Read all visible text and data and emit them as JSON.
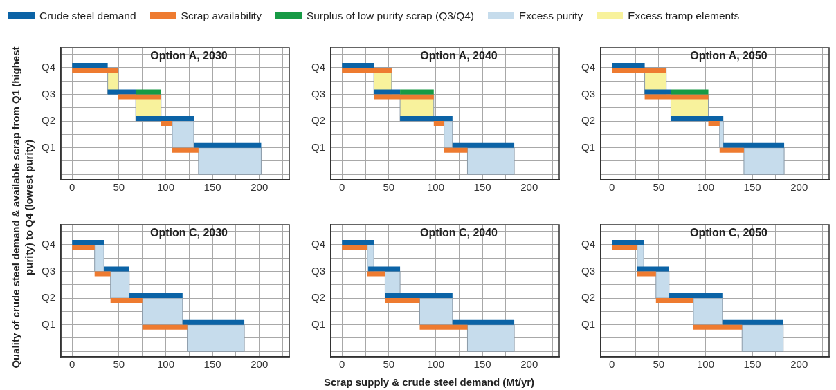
{
  "chart_data": [
    {
      "type": "bar",
      "orientation": "horizontal",
      "title": "Option A, 2030",
      "legend": "top",
      "ylabel": "Quality of crude steel demand & available scrap from Q1 (highest purity) to Q4 (lowest purity)",
      "xlabel": "Scrap supply & crude steel demand (Mt/yr)",
      "grid": true,
      "xlim": [
        -12,
        232
      ],
      "xticks": [
        0,
        {
          "value": 25,
          "label": null
        },
        50,
        {
          "value": 75,
          "label": null
        },
        100,
        {
          "value": 125,
          "label": null
        },
        150,
        {
          "value": 175,
          "label": null
        },
        200,
        {
          "value": 225,
          "label": null
        }
      ],
      "categories": [
        "Q4",
        null,
        "Q3",
        null,
        "Q2",
        null,
        "Q1",
        null
      ],
      "series": [
        {
          "name": "Crude steel demand",
          "color": "#0b63a6",
          "base": [
            0,
            null,
            38,
            null,
            68,
            null,
            130,
            null
          ],
          "values": [
            38,
            null,
            30,
            null,
            62,
            null,
            72,
            null
          ]
        },
        {
          "name": "Scrap availability",
          "color": "#ee7b30",
          "base": [
            0,
            null,
            49,
            null,
            95,
            null,
            107,
            null
          ],
          "values": [
            49,
            null,
            46,
            null,
            12,
            null,
            28,
            null
          ]
        },
        {
          "name": "Surplus of low purity scrap (Q3/Q4)",
          "color": "#179a45",
          "base": [
            null,
            null,
            68,
            null,
            null,
            null,
            null,
            null
          ],
          "values": [
            null,
            null,
            27,
            null,
            null,
            null,
            null,
            null
          ]
        },
        {
          "name": "Excess purity",
          "color": "#c6dcec",
          "base": [
            null,
            null,
            null,
            null,
            null,
            107,
            null,
            135
          ],
          "values": [
            null,
            null,
            null,
            null,
            null,
            23,
            null,
            67
          ]
        },
        {
          "name": "Excess tramp elements",
          "color": "#f8f29c",
          "base": [
            null,
            38,
            null,
            68,
            null,
            null,
            null,
            null
          ],
          "values": [
            null,
            11,
            null,
            27,
            null,
            null,
            null,
            null
          ]
        }
      ]
    },
    {
      "type": "bar",
      "orientation": "horizontal",
      "title": "Option A, 2040",
      "grid": true,
      "xlim": [
        -12,
        232
      ],
      "xticks": [
        0,
        {
          "value": 25,
          "label": null
        },
        50,
        {
          "value": 75,
          "label": null
        },
        100,
        {
          "value": 125,
          "label": null
        },
        150,
        {
          "value": 175,
          "label": null
        },
        200,
        {
          "value": 225,
          "label": null
        }
      ],
      "categories": [
        "Q4",
        null,
        "Q3",
        null,
        "Q2",
        null,
        "Q1",
        null
      ],
      "series": [
        {
          "name": "Crude steel demand",
          "color": "#0b63a6",
          "base": [
            0,
            null,
            34,
            null,
            62,
            null,
            118,
            null
          ],
          "values": [
            34,
            null,
            28,
            null,
            56,
            null,
            66,
            null
          ]
        },
        {
          "name": "Scrap availability",
          "color": "#ee7b30",
          "base": [
            0,
            null,
            34,
            null,
            98,
            null,
            109,
            null
          ],
          "values": [
            53,
            null,
            64,
            null,
            11,
            null,
            25,
            null
          ]
        },
        {
          "name": "Surplus of low purity scrap (Q3/Q4)",
          "color": "#179a45",
          "base": [
            null,
            null,
            62,
            null,
            null,
            null,
            null,
            null
          ],
          "values": [
            null,
            null,
            36,
            null,
            null,
            null,
            null,
            null
          ]
        },
        {
          "name": "Excess purity",
          "color": "#c6dcec",
          "base": [
            null,
            null,
            null,
            null,
            null,
            109,
            null,
            134
          ],
          "values": [
            null,
            null,
            null,
            null,
            null,
            9,
            null,
            50
          ]
        },
        {
          "name": "Excess tramp elements",
          "color": "#f8f29c",
          "base": [
            null,
            34,
            null,
            62,
            null,
            null,
            null,
            null
          ],
          "values": [
            null,
            19,
            null,
            36,
            null,
            null,
            null,
            null
          ]
        }
      ]
    },
    {
      "type": "bar",
      "orientation": "horizontal",
      "title": "Option A, 2050",
      "grid": true,
      "xlim": [
        -12,
        232
      ],
      "xticks": [
        0,
        {
          "value": 25,
          "label": null
        },
        50,
        {
          "value": 75,
          "label": null
        },
        100,
        {
          "value": 125,
          "label": null
        },
        150,
        {
          "value": 175,
          "label": null
        },
        200,
        {
          "value": 225,
          "label": null
        }
      ],
      "categories": [
        "Q4",
        null,
        "Q3",
        null,
        "Q2",
        null,
        "Q1",
        null
      ],
      "series": [
        {
          "name": "Crude steel demand",
          "color": "#0b63a6",
          "base": [
            0,
            null,
            35,
            null,
            63,
            null,
            119,
            null
          ],
          "values": [
            35,
            null,
            28,
            null,
            56,
            null,
            65,
            null
          ]
        },
        {
          "name": "Scrap availability",
          "color": "#ee7b30",
          "base": [
            0,
            null,
            35,
            null,
            103,
            null,
            115,
            null
          ],
          "values": [
            58,
            null,
            68,
            null,
            12,
            null,
            26,
            null
          ]
        },
        {
          "name": "Surplus of low purity scrap (Q3/Q4)",
          "color": "#179a45",
          "base": [
            null,
            null,
            63,
            null,
            null,
            null,
            null,
            null
          ],
          "values": [
            null,
            null,
            40,
            null,
            null,
            null,
            null,
            null
          ]
        },
        {
          "name": "Excess purity",
          "color": "#c6dcec",
          "base": [
            null,
            null,
            null,
            null,
            null,
            115,
            null,
            141
          ],
          "values": [
            null,
            null,
            null,
            null,
            null,
            4,
            null,
            43
          ]
        },
        {
          "name": "Excess tramp elements",
          "color": "#f8f29c",
          "base": [
            null,
            35,
            null,
            63,
            null,
            null,
            null,
            null
          ],
          "values": [
            null,
            23,
            null,
            40,
            null,
            null,
            null,
            null
          ]
        }
      ]
    },
    {
      "type": "bar",
      "orientation": "horizontal",
      "title": "Option C, 2030",
      "grid": true,
      "xlim": [
        -12,
        232
      ],
      "xticks": [
        0,
        {
          "value": 25,
          "label": null
        },
        50,
        {
          "value": 75,
          "label": null
        },
        100,
        {
          "value": 125,
          "label": null
        },
        150,
        {
          "value": 175,
          "label": null
        },
        200,
        {
          "value": 225,
          "label": null
        }
      ],
      "categories": [
        "Q4",
        null,
        "Q3",
        null,
        "Q2",
        null,
        "Q1",
        null
      ],
      "series": [
        {
          "name": "Crude steel demand",
          "color": "#0b63a6",
          "base": [
            0,
            null,
            34,
            null,
            61,
            null,
            118,
            null
          ],
          "values": [
            34,
            null,
            27,
            null,
            57,
            null,
            66,
            null
          ]
        },
        {
          "name": "Scrap availability",
          "color": "#ee7b30",
          "base": [
            0,
            null,
            24,
            null,
            41,
            null,
            75,
            null
          ],
          "values": [
            24,
            null,
            17,
            null,
            34,
            null,
            48,
            null
          ]
        },
        {
          "name": "Excess purity",
          "color": "#c6dcec",
          "base": [
            null,
            24,
            null,
            41,
            null,
            75,
            null,
            123
          ],
          "values": [
            null,
            10,
            null,
            20,
            null,
            43,
            null,
            61
          ]
        }
      ]
    },
    {
      "type": "bar",
      "orientation": "horizontal",
      "title": "Option C, 2040",
      "grid": true,
      "xlim": [
        -12,
        232
      ],
      "xticks": [
        0,
        {
          "value": 25,
          "label": null
        },
        50,
        {
          "value": 75,
          "label": null
        },
        100,
        {
          "value": 125,
          "label": null
        },
        150,
        {
          "value": 175,
          "label": null
        },
        200,
        {
          "value": 225,
          "label": null
        }
      ],
      "categories": [
        "Q4",
        null,
        "Q3",
        null,
        "Q2",
        null,
        "Q1",
        null
      ],
      "series": [
        {
          "name": "Crude steel demand",
          "color": "#0b63a6",
          "base": [
            0,
            null,
            28,
            null,
            46,
            null,
            118,
            null
          ],
          "values": [
            34,
            null,
            34,
            null,
            72,
            null,
            66,
            null
          ]
        },
        {
          "name": "Scrap availability",
          "color": "#ee7b30",
          "base": [
            0,
            null,
            27,
            null,
            46,
            null,
            83,
            null
          ],
          "values": [
            27,
            null,
            19,
            null,
            37,
            null,
            51,
            null
          ]
        },
        {
          "name": "Excess purity",
          "color": "#c6dcec",
          "base": [
            null,
            27,
            null,
            46,
            null,
            83,
            null,
            134
          ],
          "values": [
            null,
            7,
            null,
            16,
            null,
            35,
            null,
            50
          ]
        }
      ]
    },
    {
      "type": "bar",
      "orientation": "horizontal",
      "title": "Option C, 2050",
      "grid": true,
      "xlim": [
        -12,
        232
      ],
      "xticks": [
        0,
        {
          "value": 25,
          "label": null
        },
        50,
        {
          "value": 75,
          "label": null
        },
        100,
        {
          "value": 125,
          "label": null
        },
        150,
        {
          "value": 175,
          "label": null
        },
        200,
        {
          "value": 225,
          "label": null
        }
      ],
      "categories": [
        "Q4",
        null,
        "Q3",
        null,
        "Q2",
        null,
        "Q1",
        null
      ],
      "series": [
        {
          "name": "Crude steel demand",
          "color": "#0b63a6",
          "base": [
            0,
            null,
            27,
            null,
            61,
            null,
            118,
            null
          ],
          "values": [
            34,
            null,
            34,
            null,
            57,
            null,
            65,
            null
          ]
        },
        {
          "name": "Scrap availability",
          "color": "#ee7b30",
          "base": [
            0,
            null,
            27,
            null,
            47,
            null,
            87,
            null
          ],
          "values": [
            27,
            null,
            20,
            null,
            40,
            null,
            52,
            null
          ]
        },
        {
          "name": "Excess purity",
          "color": "#c6dcec",
          "base": [
            null,
            27,
            null,
            47,
            null,
            87,
            null,
            139
          ],
          "values": [
            null,
            7,
            null,
            14,
            null,
            31,
            null,
            44
          ]
        }
      ]
    }
  ]
}
